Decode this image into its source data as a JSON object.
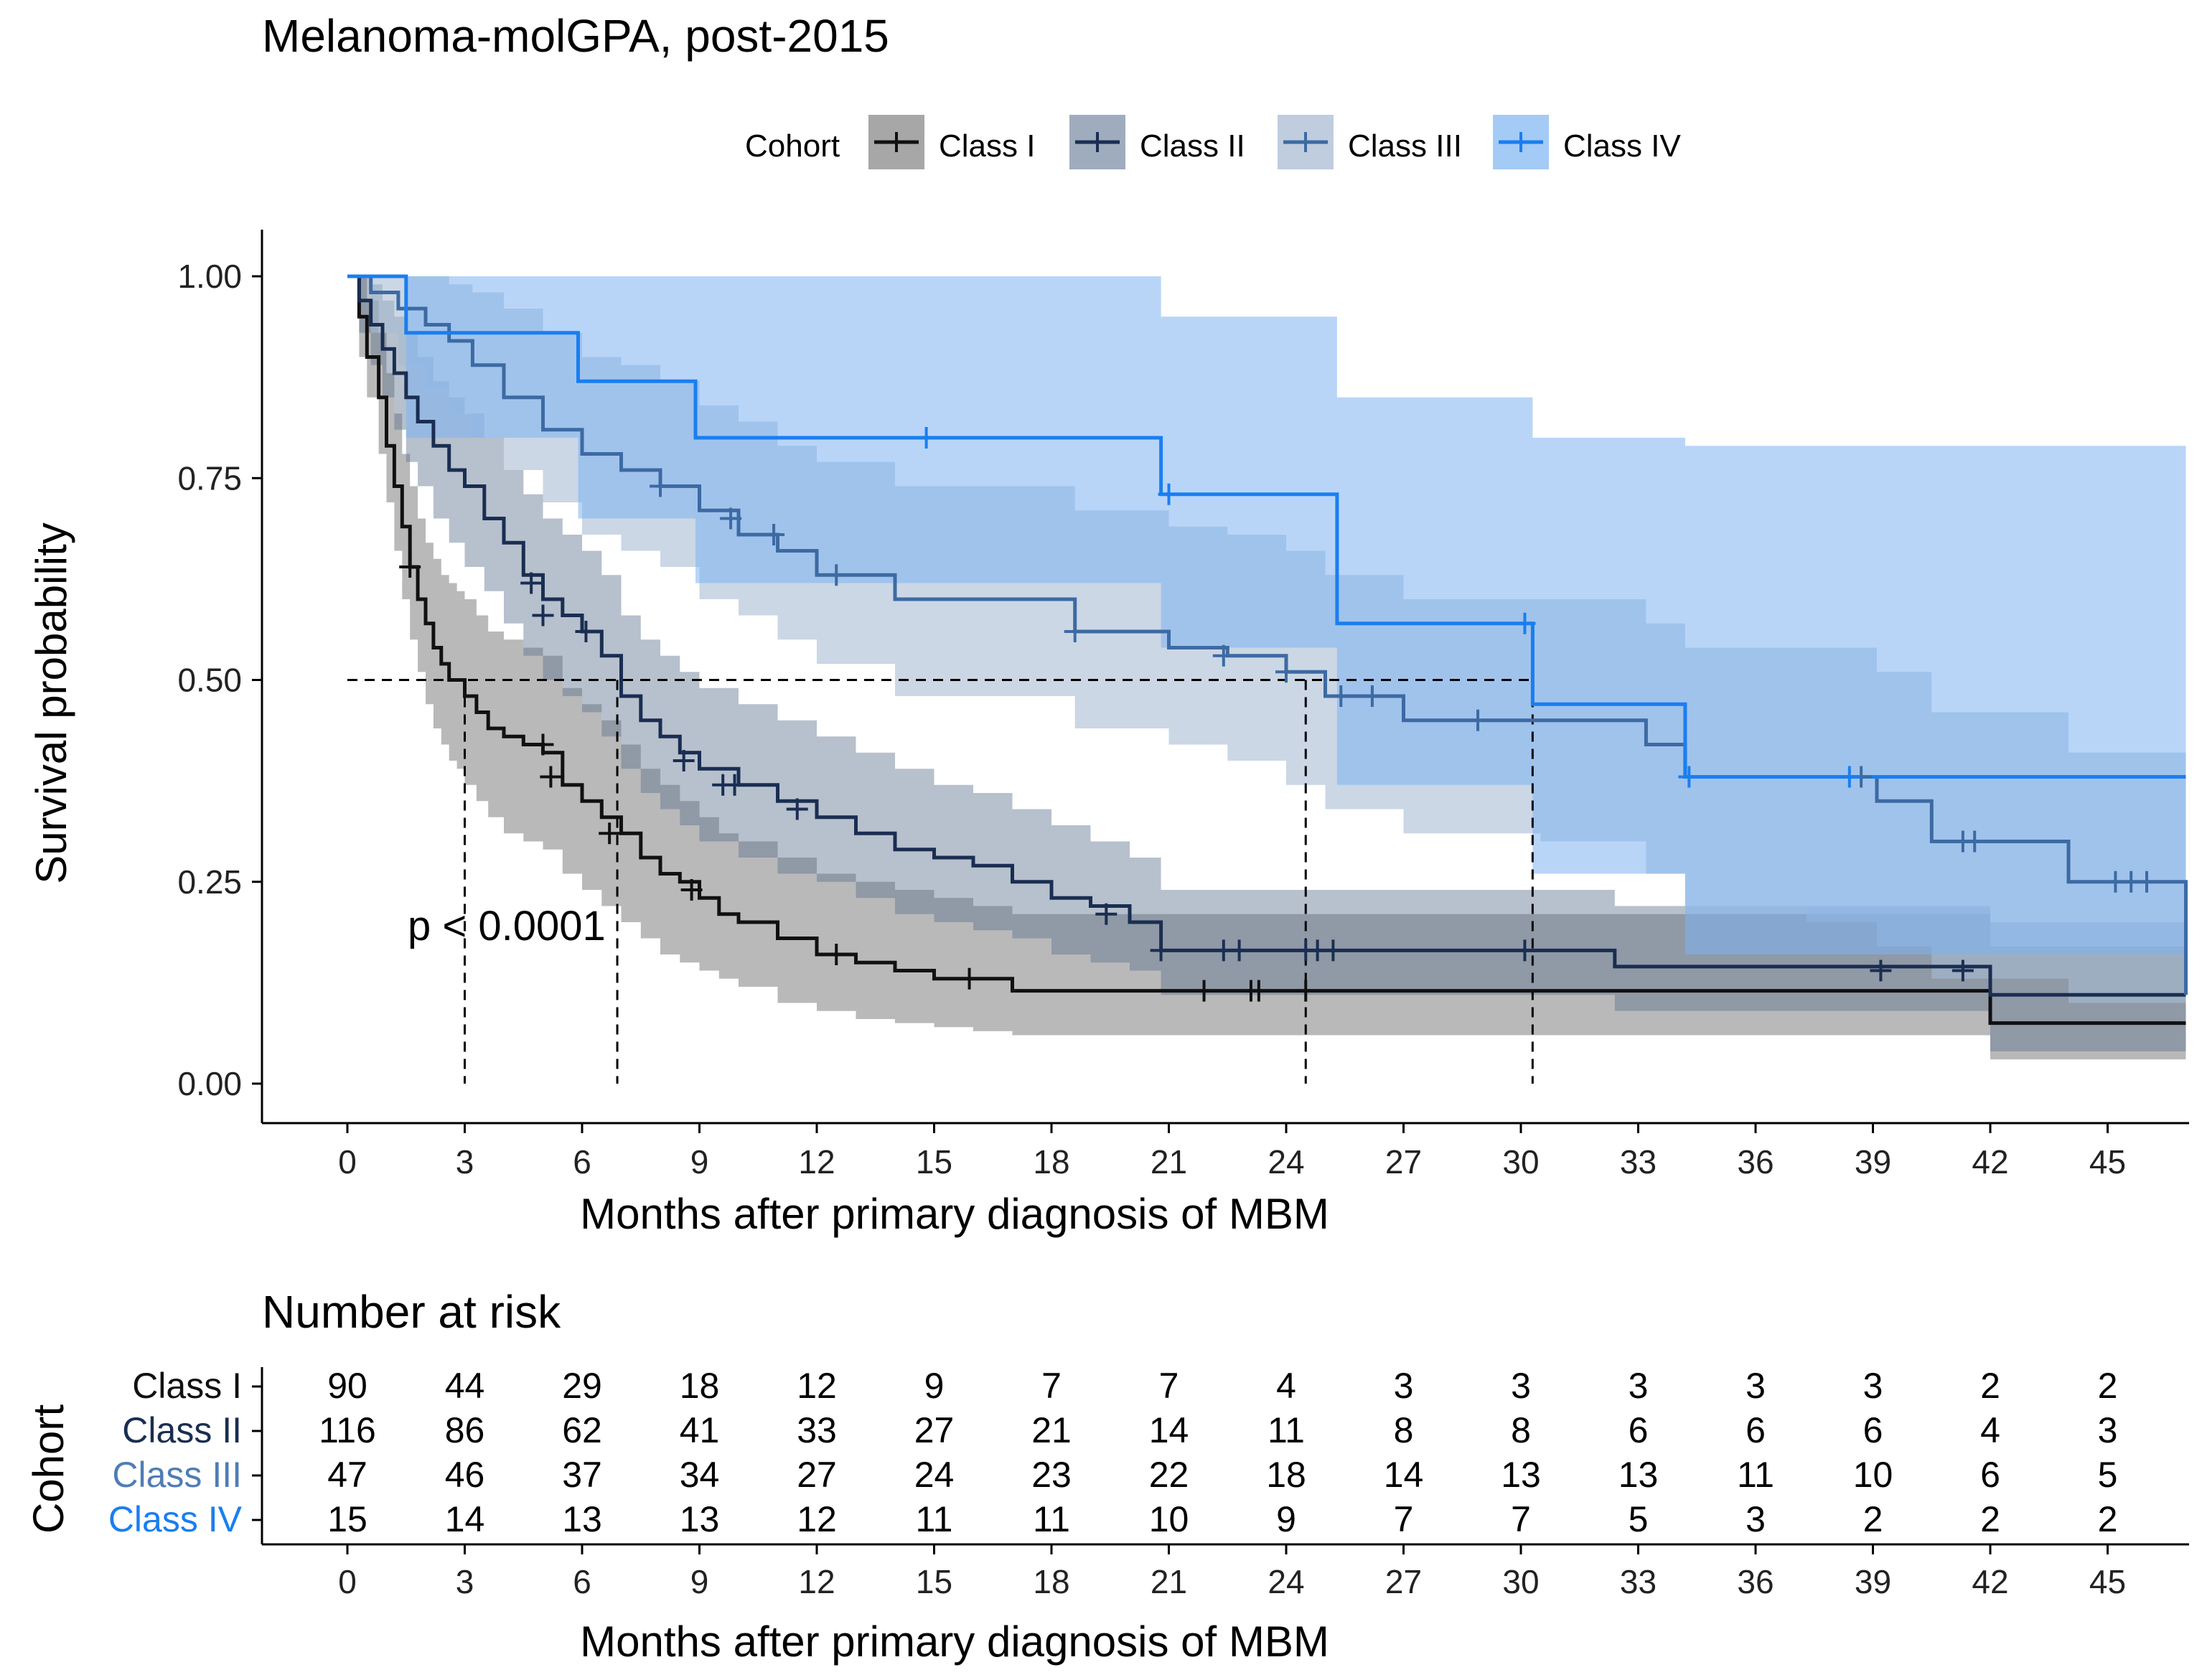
{
  "chart_data": {
    "type": "kaplan-meier",
    "title": "Melanoma-molGPA, post-2015",
    "xlabel": "Months after primary diagnosis of MBM",
    "ylabel": "Survival probability",
    "xlim": [
      0,
      47
    ],
    "ylim": [
      0,
      1
    ],
    "x_ticks": [
      0,
      3,
      6,
      9,
      12,
      15,
      18,
      21,
      24,
      27,
      30,
      33,
      36,
      39,
      42,
      45
    ],
    "y_ticks": [
      0,
      0.25,
      0.5,
      0.75,
      1.0
    ],
    "y_tick_labels": [
      "0.00",
      "0.25",
      "0.50",
      "0.75",
      "1.00"
    ],
    "legend": {
      "title": "Cohort",
      "position": "top"
    },
    "pvalue_text": "p < 0.0001",
    "median_survival": [
      {
        "name": "Class I",
        "x": 3.0
      },
      {
        "name": "Class II",
        "x": 6.9
      },
      {
        "name": "Class III",
        "x": 24.5
      },
      {
        "name": "Class IV",
        "x": 30.3
      }
    ],
    "series": [
      {
        "name": "Class I",
        "color": "#111111",
        "band_color": "#8a8a8a",
        "band_opacity": 0.6,
        "x": [
          0,
          0.3,
          0.5,
          0.8,
          1.0,
          1.2,
          1.4,
          1.6,
          1.8,
          2.0,
          2.2,
          2.4,
          2.6,
          2.8,
          3.0,
          3.3,
          3.6,
          4.0,
          4.5,
          5.0,
          5.5,
          6.0,
          6.5,
          7.0,
          7.5,
          8.0,
          8.5,
          9.0,
          9.5,
          10.0,
          11.0,
          12.0,
          13.0,
          14.0,
          15.0,
          16.0,
          17.0,
          24.5,
          42.0,
          47.0
        ],
        "y": [
          1.0,
          0.95,
          0.9,
          0.85,
          0.79,
          0.74,
          0.69,
          0.64,
          0.6,
          0.57,
          0.54,
          0.52,
          0.5,
          0.5,
          0.48,
          0.46,
          0.44,
          0.43,
          0.42,
          0.41,
          0.37,
          0.35,
          0.33,
          0.31,
          0.28,
          0.26,
          0.25,
          0.23,
          0.21,
          0.2,
          0.18,
          0.16,
          0.15,
          0.14,
          0.13,
          0.13,
          0.115,
          0.115,
          0.075,
          0.075
        ],
        "lower": [
          1.0,
          0.9,
          0.85,
          0.78,
          0.72,
          0.66,
          0.6,
          0.55,
          0.51,
          0.47,
          0.44,
          0.42,
          0.4,
          0.39,
          0.37,
          0.35,
          0.33,
          0.31,
          0.3,
          0.29,
          0.26,
          0.24,
          0.22,
          0.2,
          0.18,
          0.16,
          0.15,
          0.14,
          0.13,
          0.12,
          0.1,
          0.09,
          0.08,
          0.075,
          0.07,
          0.065,
          0.06,
          0.06,
          0.03,
          0.03
        ],
        "upper": [
          1.0,
          1.0,
          0.97,
          0.93,
          0.88,
          0.83,
          0.78,
          0.74,
          0.7,
          0.67,
          0.65,
          0.63,
          0.62,
          0.61,
          0.6,
          0.58,
          0.56,
          0.55,
          0.54,
          0.53,
          0.49,
          0.47,
          0.45,
          0.42,
          0.39,
          0.37,
          0.35,
          0.33,
          0.31,
          0.3,
          0.28,
          0.26,
          0.25,
          0.24,
          0.23,
          0.22,
          0.21,
          0.21,
          0.17,
          0.17
        ],
        "censor_x": [
          1.6,
          5.0,
          5.2,
          6.7,
          8.8,
          12.5,
          15.9,
          21.9,
          23.1,
          23.3,
          24.5
        ],
        "censor_y": [
          0.64,
          0.42,
          0.38,
          0.31,
          0.24,
          0.16,
          0.13,
          0.115,
          0.115,
          0.115,
          0.115
        ]
      },
      {
        "name": "Class II",
        "color": "#1a2e52",
        "band_color": "#5f7491",
        "band_opacity": 0.45,
        "x": [
          0,
          0.3,
          0.6,
          0.9,
          1.2,
          1.5,
          1.8,
          2.2,
          2.6,
          3.0,
          3.5,
          4.0,
          4.5,
          5.0,
          5.5,
          6.0,
          6.5,
          7.0,
          7.5,
          8.0,
          8.5,
          9.0,
          10.0,
          11.0,
          12.0,
          13.0,
          14.0,
          15.0,
          16.0,
          17.0,
          18.0,
          19.0,
          20.0,
          20.8,
          32.4,
          42.0,
          47.0
        ],
        "y": [
          1.0,
          0.97,
          0.94,
          0.91,
          0.88,
          0.85,
          0.82,
          0.79,
          0.76,
          0.74,
          0.7,
          0.67,
          0.63,
          0.6,
          0.58,
          0.56,
          0.53,
          0.48,
          0.45,
          0.43,
          0.41,
          0.39,
          0.37,
          0.35,
          0.33,
          0.31,
          0.29,
          0.28,
          0.27,
          0.25,
          0.23,
          0.22,
          0.2,
          0.165,
          0.145,
          0.11,
          0.11
        ],
        "lower": [
          1.0,
          0.93,
          0.89,
          0.85,
          0.81,
          0.77,
          0.74,
          0.7,
          0.67,
          0.64,
          0.61,
          0.57,
          0.53,
          0.5,
          0.48,
          0.46,
          0.43,
          0.39,
          0.36,
          0.34,
          0.32,
          0.3,
          0.28,
          0.26,
          0.25,
          0.23,
          0.21,
          0.2,
          0.19,
          0.18,
          0.16,
          0.15,
          0.14,
          0.11,
          0.09,
          0.04,
          0.04
        ],
        "upper": [
          1.0,
          1.0,
          0.99,
          0.97,
          0.95,
          0.93,
          0.9,
          0.87,
          0.85,
          0.83,
          0.8,
          0.76,
          0.73,
          0.7,
          0.68,
          0.66,
          0.63,
          0.58,
          0.55,
          0.53,
          0.51,
          0.49,
          0.47,
          0.45,
          0.43,
          0.41,
          0.39,
          0.37,
          0.36,
          0.34,
          0.32,
          0.3,
          0.28,
          0.24,
          0.22,
          0.2,
          0.2
        ],
        "censor_x": [
          4.7,
          5.0,
          6.1,
          8.6,
          9.6,
          9.9,
          11.5,
          19.4,
          20.8,
          22.4,
          22.8,
          24.5,
          24.8,
          25.2,
          30.1,
          39.2,
          41.3
        ],
        "censor_y": [
          0.62,
          0.58,
          0.56,
          0.4,
          0.37,
          0.37,
          0.34,
          0.21,
          0.165,
          0.165,
          0.165,
          0.165,
          0.165,
          0.165,
          0.165,
          0.14,
          0.14
        ]
      },
      {
        "name": "Class III",
        "color": "#3d6aa3",
        "band_color": "#a9bcd3",
        "band_opacity": 0.6,
        "x": [
          0,
          0.6,
          1.3,
          2.0,
          2.6,
          3.2,
          4.0,
          5.0,
          6.0,
          7.0,
          8.0,
          9.0,
          10.0,
          11.0,
          12.0,
          14.0,
          18.6,
          21.0,
          22.5,
          24.0,
          25.0,
          27.0,
          30.5,
          33.2,
          34.2,
          37.3,
          39.1,
          40.5,
          44.0,
          47.0
        ],
        "y": [
          1.0,
          0.98,
          0.96,
          0.94,
          0.92,
          0.89,
          0.85,
          0.81,
          0.78,
          0.76,
          0.74,
          0.71,
          0.68,
          0.66,
          0.63,
          0.6,
          0.56,
          0.54,
          0.53,
          0.51,
          0.48,
          0.45,
          0.45,
          0.42,
          0.38,
          0.38,
          0.35,
          0.3,
          0.25,
          0.11
        ],
        "lower": [
          1.0,
          0.93,
          0.89,
          0.86,
          0.83,
          0.8,
          0.76,
          0.72,
          0.68,
          0.66,
          0.64,
          0.6,
          0.58,
          0.55,
          0.52,
          0.48,
          0.44,
          0.42,
          0.4,
          0.37,
          0.34,
          0.31,
          0.3,
          0.26,
          0.22,
          0.2,
          0.17,
          0.13,
          0.1,
          0.03
        ],
        "upper": [
          1.0,
          1.0,
          1.0,
          1.0,
          0.99,
          0.98,
          0.96,
          0.93,
          0.9,
          0.89,
          0.87,
          0.84,
          0.82,
          0.79,
          0.77,
          0.74,
          0.71,
          0.69,
          0.68,
          0.66,
          0.63,
          0.6,
          0.6,
          0.57,
          0.54,
          0.54,
          0.51,
          0.46,
          0.41,
          0.28
        ],
        "censor_x": [
          8.0,
          9.8,
          10.9,
          12.5,
          18.6,
          22.4,
          24.0,
          25.4,
          26.2,
          28.9,
          38.7,
          41.3,
          41.6,
          45.2,
          45.6,
          46.0
        ],
        "censor_y": [
          0.74,
          0.7,
          0.68,
          0.63,
          0.56,
          0.53,
          0.51,
          0.48,
          0.48,
          0.45,
          0.38,
          0.3,
          0.3,
          0.25,
          0.25,
          0.25
        ],
        "label_color": "#4f7db5"
      },
      {
        "name": "Class IV",
        "color": "#1a7ef0",
        "band_color": "#7db3f2",
        "band_opacity": 0.55,
        "x": [
          0,
          1.5,
          5.9,
          8.9,
          20.8,
          25.3,
          30.3,
          34.2,
          47.0
        ],
        "y": [
          1.0,
          0.93,
          0.87,
          0.8,
          0.73,
          0.57,
          0.47,
          0.38,
          0.38
        ],
        "lower": [
          1.0,
          0.8,
          0.7,
          0.62,
          0.54,
          0.37,
          0.26,
          0.16,
          0.16
        ],
        "upper": [
          1.0,
          1.0,
          1.0,
          1.0,
          0.95,
          0.85,
          0.8,
          0.79,
          0.79
        ],
        "censor_x": [
          14.8,
          21.0,
          30.1,
          34.3,
          38.4
        ],
        "censor_y": [
          0.8,
          0.73,
          0.57,
          0.38,
          0.38
        ],
        "label_color": "#1a7ef0"
      }
    ],
    "risk_table": {
      "title": "Number at risk",
      "ylabel": "Cohort",
      "xlabel": "Months after primary diagnosis of MBM",
      "times": [
        0,
        3,
        6,
        9,
        12,
        15,
        18,
        21,
        24,
        27,
        30,
        33,
        36,
        39,
        42,
        45
      ],
      "rows": [
        {
          "name": "Class I",
          "label_color": "#111111",
          "values": [
            90,
            44,
            29,
            18,
            12,
            9,
            7,
            7,
            4,
            3,
            3,
            3,
            3,
            3,
            2,
            2
          ]
        },
        {
          "name": "Class II",
          "label_color": "#1a2e52",
          "values": [
            116,
            86,
            62,
            41,
            33,
            27,
            21,
            14,
            11,
            8,
            8,
            6,
            6,
            6,
            4,
            3
          ]
        },
        {
          "name": "Class III",
          "label_color": "#4f7db5",
          "values": [
            47,
            46,
            37,
            34,
            27,
            24,
            23,
            22,
            18,
            14,
            13,
            13,
            11,
            10,
            6,
            5
          ]
        },
        {
          "name": "Class IV",
          "label_color": "#1a7ef0",
          "values": [
            15,
            14,
            13,
            13,
            12,
            11,
            11,
            10,
            9,
            7,
            7,
            5,
            3,
            2,
            2,
            2
          ]
        }
      ]
    }
  }
}
